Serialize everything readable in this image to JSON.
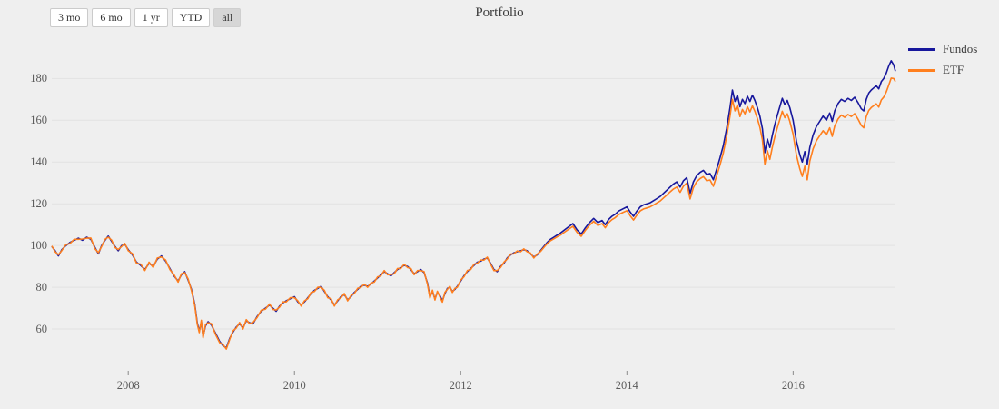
{
  "title": "Portfolio",
  "range_selector": {
    "buttons": [
      {
        "label": "3 mo",
        "active": false
      },
      {
        "label": "6 mo",
        "active": false
      },
      {
        "label": "1 yr",
        "active": false
      },
      {
        "label": "YTD",
        "active": false
      },
      {
        "label": "all",
        "active": true
      }
    ]
  },
  "colors": {
    "background": "#efefef",
    "gridline": "#e2e2e2",
    "tick": "#8a8a8a",
    "fundos_line": "#17179c",
    "etf_line": "#ff7f1e"
  },
  "chart_data": {
    "type": "line",
    "title": "Portfolio",
    "xlabel": "",
    "ylabel": "",
    "xlim": [
      2007.08,
      2017.22
    ],
    "ylim": [
      40,
      198
    ],
    "xticks": [
      2008,
      2010,
      2012,
      2014,
      2016
    ],
    "yticks": [
      60,
      80,
      100,
      120,
      140,
      160,
      180
    ],
    "grid": "horizontal-only",
    "legend_position": "top-right",
    "x": [
      2007.08,
      2007.12,
      2007.16,
      2007.2,
      2007.25,
      2007.3,
      2007.35,
      2007.4,
      2007.45,
      2007.5,
      2007.55,
      2007.6,
      2007.64,
      2007.68,
      2007.72,
      2007.76,
      2007.8,
      2007.84,
      2007.88,
      2007.92,
      2007.96,
      2008.0,
      2008.05,
      2008.1,
      2008.15,
      2008.2,
      2008.25,
      2008.3,
      2008.35,
      2008.4,
      2008.45,
      2008.5,
      2008.55,
      2008.6,
      2008.64,
      2008.68,
      2008.72,
      2008.76,
      2008.8,
      2008.83,
      2008.855,
      2008.88,
      2008.9,
      2008.93,
      2008.96,
      2009.0,
      2009.05,
      2009.1,
      2009.14,
      2009.18,
      2009.22,
      2009.26,
      2009.3,
      2009.34,
      2009.38,
      2009.42,
      2009.46,
      2009.5,
      2009.55,
      2009.6,
      2009.65,
      2009.7,
      2009.74,
      2009.78,
      2009.82,
      2009.86,
      2009.9,
      2009.95,
      2010.0,
      2010.04,
      2010.08,
      2010.12,
      2010.16,
      2010.2,
      2010.24,
      2010.28,
      2010.32,
      2010.36,
      2010.4,
      2010.44,
      2010.48,
      2010.52,
      2010.56,
      2010.6,
      2010.64,
      2010.68,
      2010.72,
      2010.76,
      2010.8,
      2010.84,
      2010.88,
      2010.92,
      2010.96,
      2011.0,
      2011.04,
      2011.08,
      2011.12,
      2011.16,
      2011.2,
      2011.24,
      2011.28,
      2011.32,
      2011.36,
      2011.4,
      2011.44,
      2011.48,
      2011.52,
      2011.56,
      2011.6,
      2011.63,
      2011.66,
      2011.69,
      2011.72,
      2011.75,
      2011.78,
      2011.81,
      2011.84,
      2011.87,
      2011.9,
      2011.93,
      2011.96,
      2012.0,
      2012.04,
      2012.08,
      2012.12,
      2012.16,
      2012.2,
      2012.24,
      2012.28,
      2012.32,
      2012.36,
      2012.4,
      2012.44,
      2012.48,
      2012.52,
      2012.56,
      2012.6,
      2012.64,
      2012.68,
      2012.72,
      2012.76,
      2012.8,
      2012.84,
      2012.88,
      2012.92,
      2012.96,
      2013.0,
      2013.04,
      2013.08,
      2013.12,
      2013.16,
      2013.2,
      2013.25,
      2013.3,
      2013.35,
      2013.4,
      2013.45,
      2013.5,
      2013.55,
      2013.6,
      2013.65,
      2013.7,
      2013.74,
      2013.78,
      2013.82,
      2013.86,
      2013.9,
      2013.95,
      2014.0,
      2014.04,
      2014.08,
      2014.12,
      2014.16,
      2014.2,
      2014.24,
      2014.28,
      2014.32,
      2014.36,
      2014.4,
      2014.44,
      2014.48,
      2014.52,
      2014.56,
      2014.6,
      2014.64,
      2014.68,
      2014.72,
      2014.76,
      2014.8,
      2014.84,
      2014.88,
      2014.92,
      2014.96,
      2015.0,
      2015.04,
      2015.08,
      2015.12,
      2015.16,
      2015.2,
      2015.24,
      2015.27,
      2015.3,
      2015.33,
      2015.36,
      2015.39,
      2015.42,
      2015.45,
      2015.48,
      2015.51,
      2015.54,
      2015.57,
      2015.6,
      2015.63,
      2015.66,
      2015.69,
      2015.72,
      2015.75,
      2015.78,
      2015.81,
      2015.84,
      2015.87,
      2015.9,
      2015.93,
      2015.96,
      2016.0,
      2016.04,
      2016.08,
      2016.11,
      2016.14,
      2016.17,
      2016.2,
      2016.24,
      2016.28,
      2016.32,
      2016.36,
      2016.4,
      2016.44,
      2016.47,
      2016.5,
      2016.54,
      2016.58,
      2016.62,
      2016.66,
      2016.7,
      2016.74,
      2016.78,
      2016.82,
      2016.85,
      2016.88,
      2016.91,
      2016.94,
      2016.97,
      2017.0,
      2017.03,
      2017.06,
      2017.09,
      2017.12,
      2017.15,
      2017.18,
      2017.21,
      2017.23
    ],
    "series": [
      {
        "name": "Fundos",
        "color": "#17179c",
        "values": [
          99.5,
          97.5,
          95,
          98,
          100,
          101.5,
          102.5,
          103.5,
          102.5,
          104,
          103,
          99,
          96,
          100,
          102.5,
          104.5,
          102,
          99.5,
          97.5,
          100,
          100.5,
          98,
          95.5,
          92,
          90.5,
          88.5,
          91.5,
          90,
          93.5,
          95,
          92.5,
          89,
          85.5,
          83,
          86,
          87.5,
          83.5,
          79,
          72,
          63,
          59,
          63.5,
          56.5,
          61.5,
          63.5,
          62,
          58,
          54,
          52,
          51,
          55.5,
          58.5,
          61,
          62.5,
          60.5,
          64,
          63,
          62.5,
          66,
          68.5,
          70,
          71.5,
          70,
          68.5,
          71,
          72.5,
          73.5,
          74.5,
          75.5,
          73,
          71.5,
          73,
          75,
          77,
          78.5,
          79.5,
          80.5,
          78,
          75.5,
          74,
          71.5,
          73.5,
          75.5,
          76.5,
          74,
          75.5,
          77.5,
          79,
          80.5,
          81,
          80.5,
          81.5,
          83,
          84.5,
          86,
          87.5,
          86.5,
          85.5,
          87,
          88.5,
          89.5,
          90.5,
          90,
          88.5,
          86.5,
          87.5,
          88.5,
          87,
          82,
          75.5,
          78,
          74.5,
          77.5,
          76,
          73.5,
          77,
          79.5,
          80,
          78,
          79,
          80.5,
          83,
          85.5,
          87.5,
          89,
          90.5,
          92,
          92.5,
          93.5,
          94,
          91.5,
          88.5,
          87.5,
          90,
          91.5,
          94,
          95.5,
          96.5,
          97,
          97.5,
          98,
          97.5,
          96,
          94.5,
          95.5,
          97.5,
          99.5,
          101.5,
          103,
          104,
          105,
          106,
          107.5,
          109,
          110.5,
          107.5,
          105.5,
          108.5,
          111,
          113,
          111,
          112,
          110,
          112.5,
          114,
          115,
          116.5,
          117.5,
          118.5,
          116,
          114,
          116.5,
          118.5,
          119.5,
          120,
          120.5,
          121.5,
          122.5,
          123.5,
          125,
          126.5,
          128,
          129.5,
          130.5,
          128,
          131,
          132.5,
          125,
          130.5,
          133.5,
          135,
          136,
          134,
          134.5,
          131.5,
          136.5,
          142,
          148,
          156,
          166,
          174.5,
          169,
          172,
          166.5,
          170,
          168,
          171.5,
          169,
          172,
          169.5,
          166,
          162,
          156,
          144.5,
          151,
          147,
          153,
          158,
          162.5,
          166.5,
          170.5,
          167.5,
          169.5,
          166,
          160,
          150,
          143.5,
          140,
          145,
          139,
          147,
          153,
          157,
          159.5,
          162,
          160,
          163.5,
          159.5,
          164.5,
          168,
          170,
          169,
          170.5,
          169.5,
          171,
          168.5,
          165.5,
          164.5,
          170,
          173,
          174.5,
          175.5,
          176.5,
          175,
          178.5,
          180,
          182.5,
          186,
          188.5,
          186.5,
          183.5
        ]
      },
      {
        "name": "ETF",
        "color": "#ff7f1e",
        "values": [
          99.8,
          97,
          95.6,
          97.6,
          100.4,
          101,
          103,
          103,
          103.1,
          103.5,
          103.6,
          98.4,
          96.6,
          99.5,
          103,
          104,
          102.6,
          99,
          98.1,
          99.5,
          101,
          97.5,
          96.1,
          91.5,
          91.1,
          88,
          92,
          89.5,
          94,
          94.5,
          93,
          88.5,
          86.1,
          82.5,
          86.5,
          87,
          84,
          78.4,
          71.4,
          62.3,
          58.3,
          64.2,
          55.8,
          62.2,
          63,
          62.6,
          57.4,
          53.4,
          52.6,
          50.4,
          55,
          59.1,
          60.5,
          63.1,
          60,
          64.5,
          62.5,
          63.1,
          65.5,
          69,
          69.5,
          72,
          69.4,
          69.1,
          70.5,
          73,
          73,
          75,
          75,
          73.5,
          71,
          73.5,
          74.5,
          77.5,
          78,
          80,
          80,
          78.5,
          75,
          74.5,
          71,
          74,
          75,
          77,
          73.5,
          76,
          77,
          79.5,
          80,
          81.5,
          80,
          82,
          82.5,
          85,
          85.5,
          88,
          86,
          86.1,
          86.5,
          89,
          89,
          91,
          89.5,
          89,
          86,
          88,
          88,
          87.5,
          81.4,
          74.8,
          78.6,
          73.9,
          78.1,
          75.4,
          72.9,
          77.6,
          79,
          80.5,
          77.5,
          79.5,
          80,
          83.5,
          85,
          88,
          88.5,
          91,
          91.5,
          93,
          93,
          94.4,
          91,
          88,
          88,
          89.5,
          92,
          93.5,
          95.9,
          96,
          97.4,
          97,
          98.4,
          97,
          96.4,
          94,
          95.9,
          97.1,
          99,
          100.9,
          102.3,
          103.2,
          104.1,
          105,
          106.4,
          107.8,
          109.2,
          106.3,
          104.4,
          107.3,
          109.7,
          111.6,
          109.6,
          110.5,
          108.5,
          111,
          112.4,
          113.4,
          114.8,
          115.8,
          116.7,
          114.2,
          112.2,
          114.6,
          116.6,
          117.5,
          118,
          118.5,
          119.4,
          120.4,
          121.3,
          122.8,
          124.2,
          125.7,
          127.1,
          128,
          125.5,
          128.4,
          129.9,
          122.3,
          127.7,
          130.6,
          132,
          133,
          131,
          131.4,
          128.4,
          133.3,
          138.6,
          144.4,
          152.2,
          161.9,
          170,
          164.5,
          167.3,
          161.8,
          165.2,
          163.1,
          166.5,
          164,
          166.9,
          164.3,
          160.8,
          156.7,
          150.6,
          139,
          145.4,
          141.3,
          147.2,
          152.1,
          156.5,
          160.4,
          164.3,
          161.2,
          163.1,
          159.5,
          153.4,
          143.3,
          136.7,
          133.1,
          138,
          131.5,
          140.4,
          146.3,
          150.2,
          152.6,
          155,
          153,
          156.4,
          152.3,
          157.2,
          160.6,
          162.5,
          161.4,
          162.8,
          161.8,
          163.2,
          160.6,
          157.5,
          156.4,
          161.8,
          164.7,
          166.1,
          167,
          167.9,
          166.3,
          169.7,
          171.1,
          173.5,
          176.8,
          180.2,
          180,
          178.5
        ]
      }
    ]
  }
}
